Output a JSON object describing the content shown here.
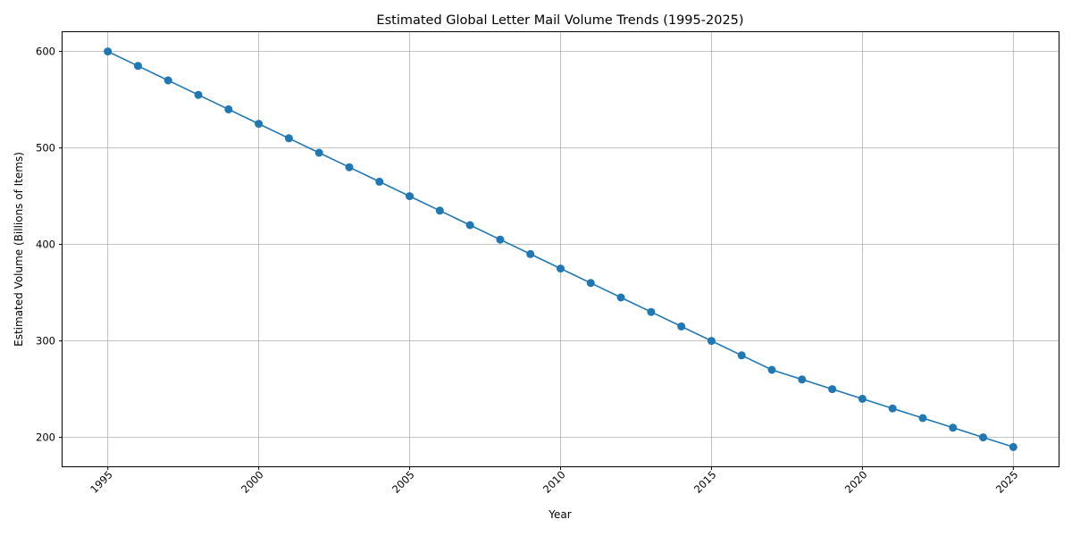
{
  "chart_data": {
    "type": "line",
    "title": "Estimated Global Letter Mail Volume Trends (1995-2025)",
    "xlabel": "Year",
    "ylabel": "Estimated Volume (Billions of Items)",
    "xlim": [
      1993.5,
      2026.5
    ],
    "ylim": [
      170,
      620
    ],
    "x_ticks": [
      1995,
      2000,
      2005,
      2010,
      2015,
      2020,
      2025
    ],
    "y_ticks": [
      200,
      300,
      400,
      500,
      600
    ],
    "x_tick_rotation_deg": 45,
    "grid": true,
    "series": [
      {
        "name": "Estimated Volume",
        "color": "#1f77b4",
        "marker": "circle",
        "x": [
          1995,
          1996,
          1997,
          1998,
          1999,
          2000,
          2001,
          2002,
          2003,
          2004,
          2005,
          2006,
          2007,
          2008,
          2009,
          2010,
          2011,
          2012,
          2013,
          2014,
          2015,
          2016,
          2017,
          2018,
          2019,
          2020,
          2021,
          2022,
          2023,
          2024,
          2025
        ],
        "values": [
          600,
          585,
          570,
          555,
          540,
          525,
          510,
          495,
          480,
          465,
          450,
          435,
          420,
          405,
          390,
          375,
          360,
          345,
          330,
          315,
          300,
          285,
          270,
          260,
          250,
          240,
          230,
          220,
          210,
          200,
          190
        ]
      }
    ]
  }
}
